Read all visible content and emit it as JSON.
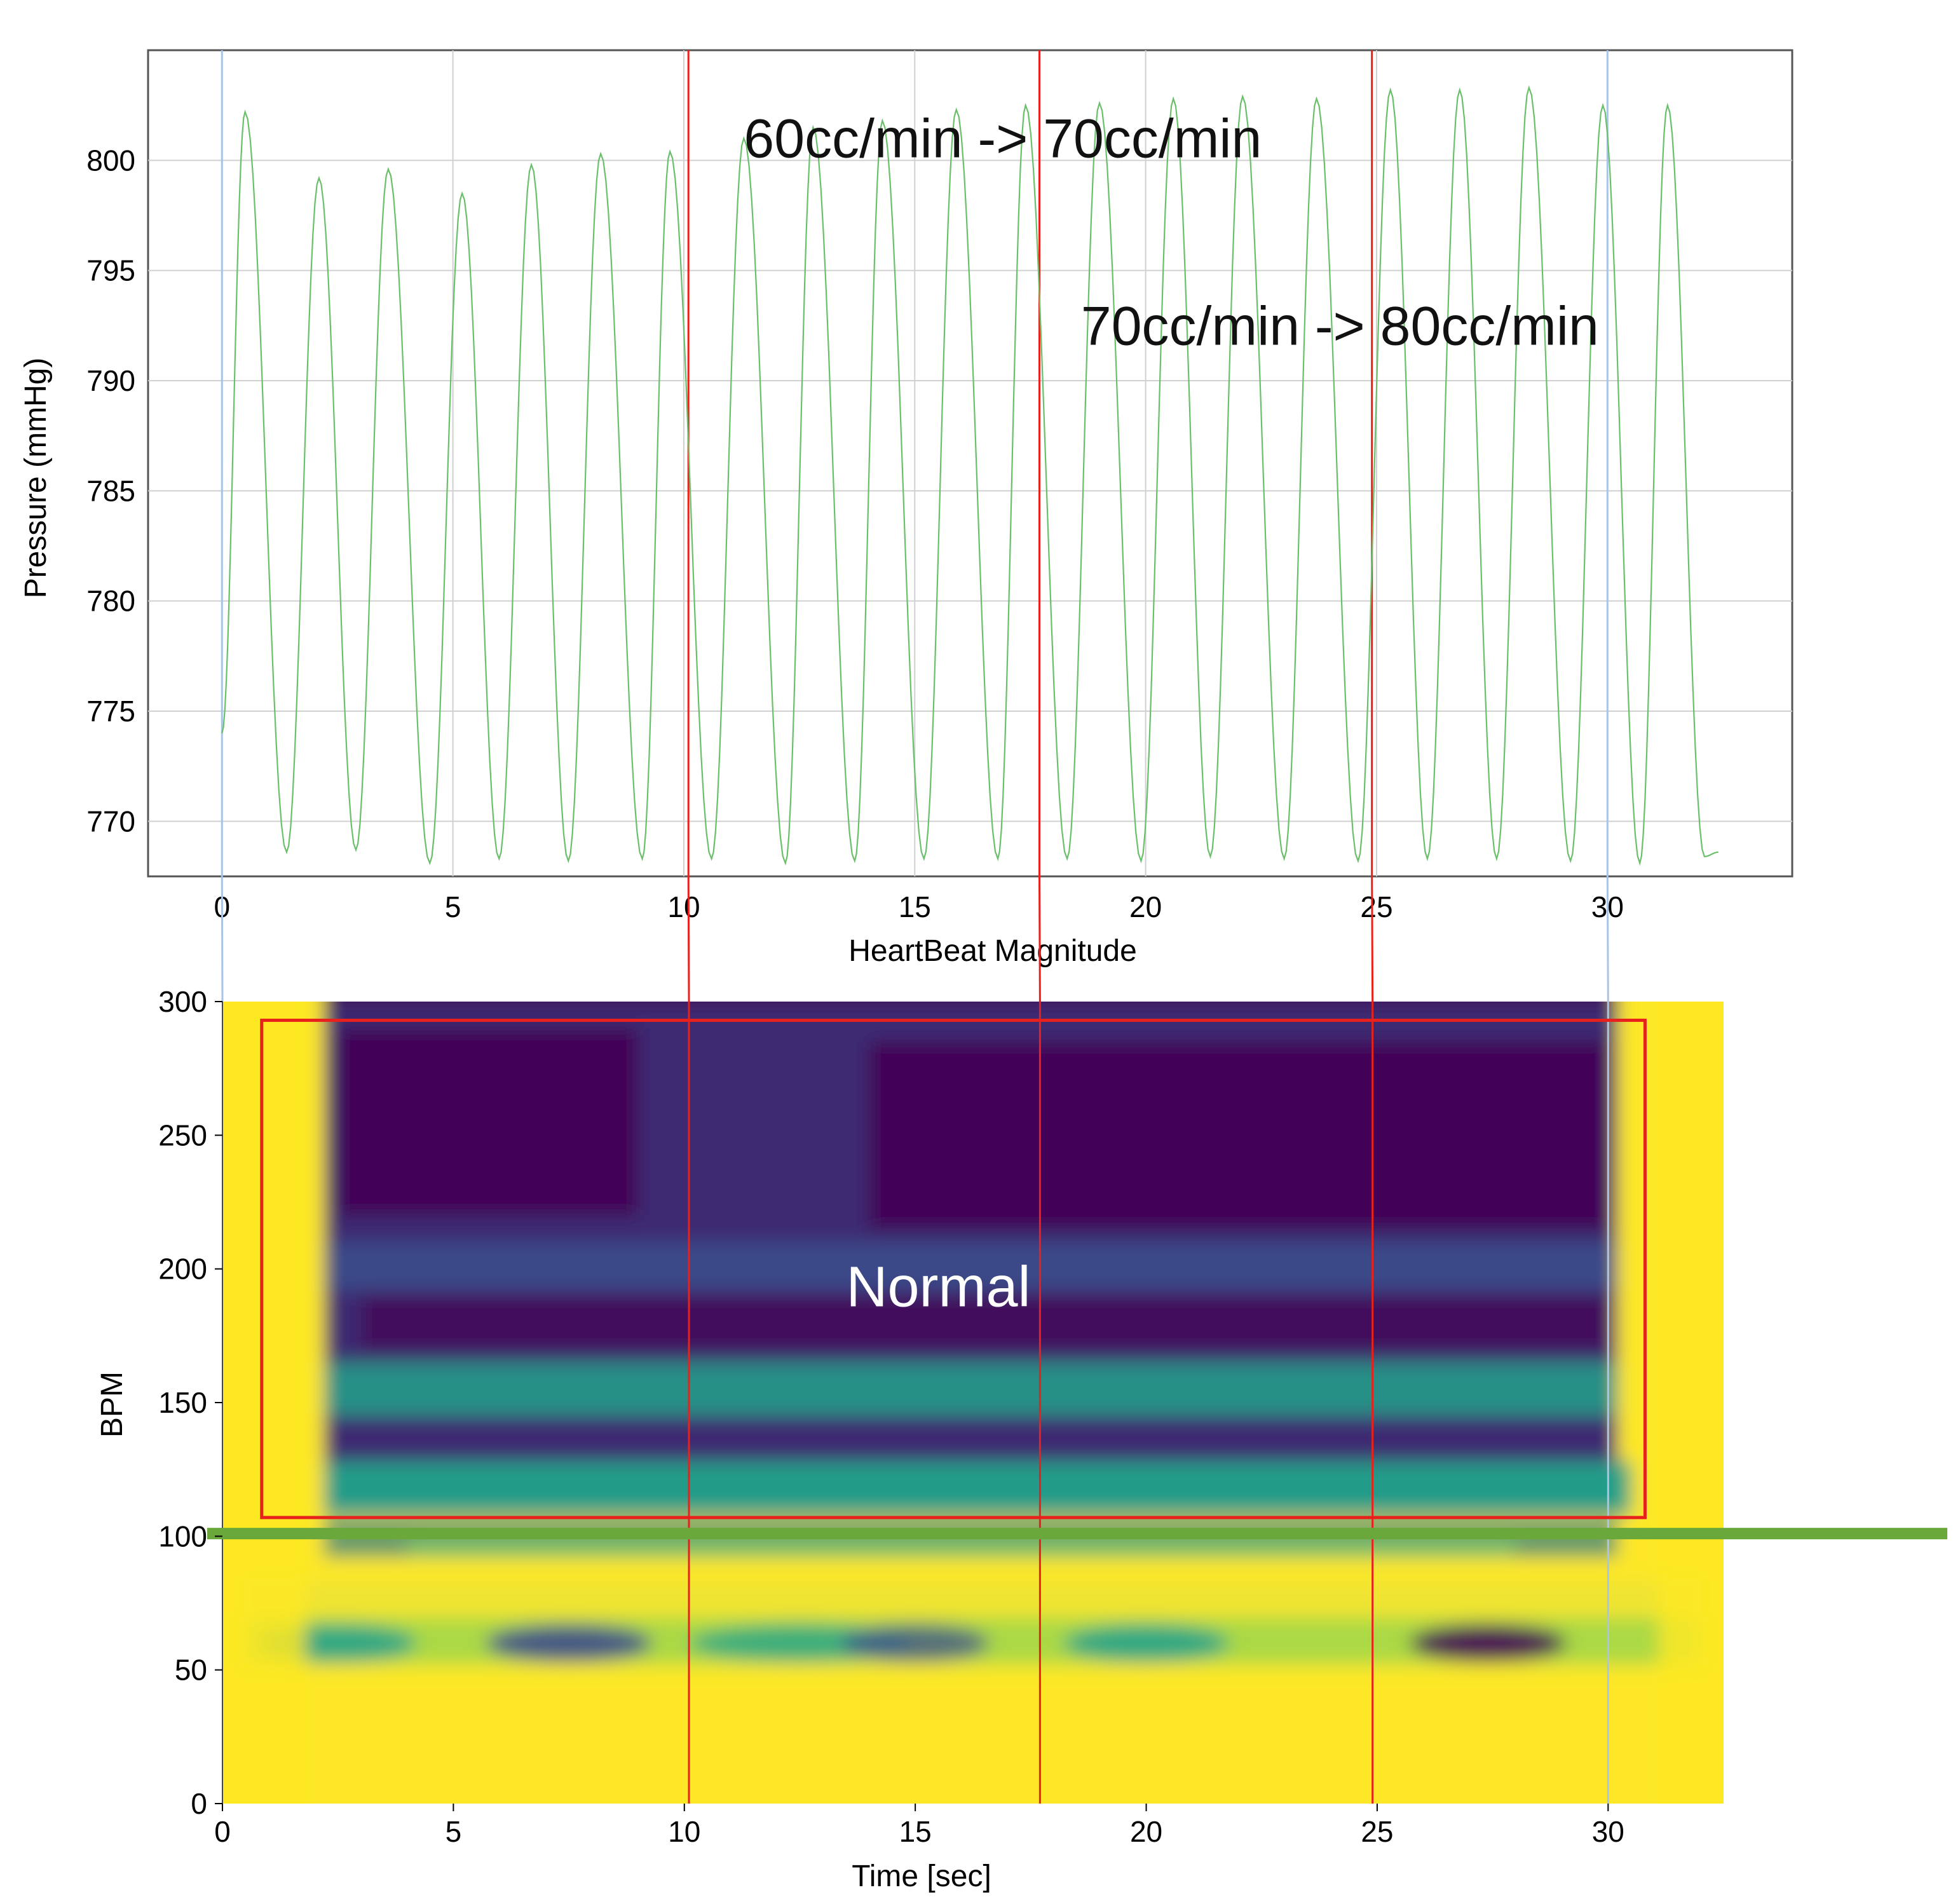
{
  "chart_data": [
    {
      "type": "line",
      "xlabel": "HeartBeat Magnitude",
      "ylabel": "Pressure (mmHg)",
      "xlim": [
        -1.6,
        34
      ],
      "ylim": [
        767.5,
        805
      ],
      "x_ticks": [
        0,
        5,
        10,
        15,
        20,
        25,
        30
      ],
      "y_ticks": [
        770,
        775,
        780,
        785,
        790,
        795,
        800
      ],
      "grid": true,
      "series": [
        {
          "name": "pressure",
          "color": "#6abf6a",
          "start": {
            "x": 0,
            "y": 774
          },
          "end": {
            "x": 32.4,
            "y": 768.6
          },
          "peaks": [
            {
              "x": 0.5,
              "y": 802.2
            },
            {
              "x": 2.1,
              "y": 799.2
            },
            {
              "x": 3.6,
              "y": 799.6
            },
            {
              "x": 5.2,
              "y": 798.5
            },
            {
              "x": 6.7,
              "y": 799.8
            },
            {
              "x": 8.2,
              "y": 800.3
            },
            {
              "x": 9.7,
              "y": 800.4
            },
            {
              "x": 11.3,
              "y": 801.0
            },
            {
              "x": 12.8,
              "y": 801.5
            },
            {
              "x": 14.3,
              "y": 801.8
            },
            {
              "x": 15.9,
              "y": 802.3
            },
            {
              "x": 17.4,
              "y": 802.5
            },
            {
              "x": 19.0,
              "y": 802.6
            },
            {
              "x": 20.6,
              "y": 802.8
            },
            {
              "x": 22.1,
              "y": 802.9
            },
            {
              "x": 23.7,
              "y": 802.8
            },
            {
              "x": 25.3,
              "y": 803.2
            },
            {
              "x": 26.8,
              "y": 803.2
            },
            {
              "x": 28.3,
              "y": 803.3
            },
            {
              "x": 29.9,
              "y": 802.5
            },
            {
              "x": 31.3,
              "y": 802.5
            }
          ],
          "troughs": [
            {
              "x": 1.4,
              "y": 768.6
            },
            {
              "x": 2.9,
              "y": 768.7
            },
            {
              "x": 4.5,
              "y": 768.1
            },
            {
              "x": 6.0,
              "y": 768.3
            },
            {
              "x": 7.5,
              "y": 768.2
            },
            {
              "x": 9.1,
              "y": 768.3
            },
            {
              "x": 10.6,
              "y": 768.3
            },
            {
              "x": 12.2,
              "y": 768.1
            },
            {
              "x": 13.7,
              "y": 768.2
            },
            {
              "x": 15.2,
              "y": 768.3
            },
            {
              "x": 16.8,
              "y": 768.3
            },
            {
              "x": 18.3,
              "y": 768.3
            },
            {
              "x": 19.9,
              "y": 768.2
            },
            {
              "x": 21.4,
              "y": 768.4
            },
            {
              "x": 23.0,
              "y": 768.3
            },
            {
              "x": 24.6,
              "y": 768.2
            },
            {
              "x": 26.1,
              "y": 768.3
            },
            {
              "x": 27.6,
              "y": 768.3
            },
            {
              "x": 29.2,
              "y": 768.2
            },
            {
              "x": 30.7,
              "y": 768.1
            },
            {
              "x": 32.1,
              "y": 768.4
            }
          ]
        }
      ],
      "vertical_markers": [
        {
          "x": 10.1,
          "color": "#e8211c"
        },
        {
          "x": 17.7,
          "color": "#e8211c"
        },
        {
          "x": 24.9,
          "color": "#e8211c"
        },
        {
          "x": 0,
          "color": "#aac4e6"
        },
        {
          "x": 30.0,
          "color": "#aac4e6"
        }
      ],
      "annotations": [
        {
          "text": "60cc/min -> 70cc/min",
          "x": 11.3,
          "y": 801
        },
        {
          "text": "70cc/min -> 80cc/min",
          "x": 18.6,
          "y": 792.5
        }
      ]
    },
    {
      "type": "heatmap",
      "xlabel": "Time [sec]",
      "ylabel": "BPM",
      "xlim": [
        0,
        32.5
      ],
      "ylim": [
        0,
        300
      ],
      "x_ticks": [
        0,
        5,
        10,
        15,
        20,
        25,
        30
      ],
      "y_ticks": [
        0,
        50,
        100,
        150,
        200,
        250,
        300
      ],
      "colormap": "viridis",
      "colors": {
        "low": "#440154",
        "mid_low": "#3b4b8b",
        "mid": "#22a28a",
        "high": "#fde725"
      },
      "low_power_region_bpm": [
        108,
        300
      ],
      "bands": [
        {
          "bpm": 60,
          "note": "teal band at ~60 BPM with dark spots"
        },
        {
          "bpm": 115,
          "note": "teal band"
        },
        {
          "bpm": 155,
          "note": "teal band"
        },
        {
          "bpm": 200,
          "note": "blue band"
        }
      ],
      "region_box": {
        "label": "Normal",
        "x_range": [
          0.85,
          30.8
        ],
        "bpm_range": [
          107,
          293
        ],
        "color": "#e8211c"
      },
      "horizontal_line": {
        "bpm": 101,
        "color": "#6aa83c"
      },
      "vertical_markers": [
        {
          "x": 10.1,
          "color": "#e8211c"
        },
        {
          "x": 17.7,
          "color": "#e8211c"
        },
        {
          "x": 24.9,
          "color": "#e8211c"
        },
        {
          "x": 30.0,
          "color": "#aac4e6"
        }
      ]
    }
  ]
}
